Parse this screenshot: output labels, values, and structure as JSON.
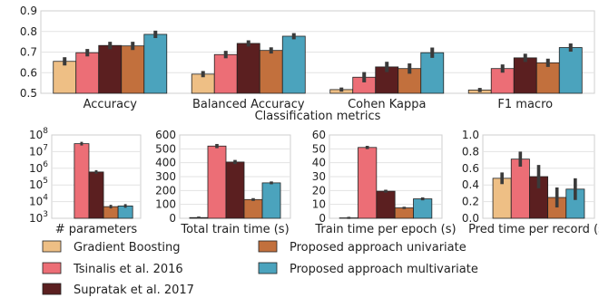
{
  "chart_data": [
    {
      "type": "bar",
      "title": "",
      "xlabel": "Classification metrics",
      "ylabel": "",
      "ylim": [
        0.5,
        0.9
      ],
      "yticks": [
        0.5,
        0.6,
        0.7,
        0.8,
        0.9
      ],
      "ytick_labels": [
        "0.5",
        "0.6",
        "0.7",
        "0.8",
        "0.9"
      ],
      "grid": true,
      "categories": [
        "Accuracy",
        "Balanced Accuracy",
        "Cohen Kappa",
        "F1 macro"
      ],
      "series": [
        {
          "name": "Gradient Boosting",
          "values": [
            0.655,
            0.593,
            0.518,
            0.516
          ],
          "err": [
            0.02,
            0.015,
            0.01,
            0.01
          ]
        },
        {
          "name": "Tsinalis et al. 2016",
          "values": [
            0.697,
            0.688,
            0.578,
            0.62
          ],
          "err": [
            0.018,
            0.018,
            0.025,
            0.02
          ]
        },
        {
          "name": "Supratak et al. 2017",
          "values": [
            0.732,
            0.742,
            0.628,
            0.672
          ],
          "err": [
            0.018,
            0.015,
            0.025,
            0.02
          ]
        },
        {
          "name": "Proposed approach univariate",
          "values": [
            0.73,
            0.708,
            0.62,
            0.648
          ],
          "err": [
            0.02,
            0.015,
            0.025,
            0.02
          ]
        },
        {
          "name": "Proposed approach multivariate",
          "values": [
            0.786,
            0.777,
            0.697,
            0.722
          ],
          "err": [
            0.018,
            0.015,
            0.025,
            0.02
          ]
        }
      ]
    },
    {
      "type": "bar",
      "title": "",
      "xlabel": "# parameters",
      "ylabel": "",
      "yscale": "log",
      "ylim": [
        1000,
        100000000
      ],
      "yticks": [
        1000,
        10000,
        100000,
        1000000,
        10000000,
        100000000
      ],
      "ytick_labels": [
        [
          "10",
          "3"
        ],
        [
          "10",
          "4"
        ],
        [
          "10",
          "5"
        ],
        [
          "10",
          "6"
        ],
        [
          "10",
          "7"
        ],
        [
          "10",
          "8"
        ]
      ],
      "grid": true,
      "categories": [
        ""
      ],
      "series": [
        {
          "name": "Gradient Boosting",
          "values": [
            null
          ],
          "err": [
            0
          ]
        },
        {
          "name": "Tsinalis et al. 2016",
          "values": [
            30000000
          ],
          "err": [
            0
          ]
        },
        {
          "name": "Supratak et al. 2017",
          "values": [
            600000
          ],
          "err": [
            0
          ]
        },
        {
          "name": "Proposed approach univariate",
          "values": [
            5000
          ],
          "err": [
            0
          ]
        },
        {
          "name": "Proposed approach multivariate",
          "values": [
            5500
          ],
          "err": [
            0
          ]
        }
      ]
    },
    {
      "type": "bar",
      "title": "",
      "xlabel": "Total train time (s)",
      "ylabel": "",
      "ylim": [
        0,
        600
      ],
      "yticks": [
        0,
        100,
        200,
        300,
        400,
        500,
        600
      ],
      "ytick_labels": [
        "0",
        "100",
        "200",
        "300",
        "400",
        "500",
        "600"
      ],
      "grid": true,
      "categories": [
        ""
      ],
      "series": [
        {
          "name": "Gradient Boosting",
          "values": [
            5
          ],
          "err": [
            1
          ]
        },
        {
          "name": "Tsinalis et al. 2016",
          "values": [
            520
          ],
          "err": [
            15
          ]
        },
        {
          "name": "Supratak et al. 2017",
          "values": [
            405
          ],
          "err": [
            15
          ]
        },
        {
          "name": "Proposed approach univariate",
          "values": [
            135
          ],
          "err": [
            10
          ]
        },
        {
          "name": "Proposed approach multivariate",
          "values": [
            255
          ],
          "err": [
            10
          ]
        }
      ]
    },
    {
      "type": "bar",
      "title": "",
      "xlabel": "Train time per epoch (s)",
      "ylabel": "",
      "ylim": [
        0,
        60
      ],
      "yticks": [
        0,
        10,
        20,
        30,
        40,
        50,
        60
      ],
      "ytick_labels": [
        "0",
        "10",
        "20",
        "30",
        "40",
        "50",
        "60"
      ],
      "grid": true,
      "categories": [
        ""
      ],
      "series": [
        {
          "name": "Gradient Boosting",
          "values": [
            0.3
          ],
          "err": [
            0.1
          ]
        },
        {
          "name": "Tsinalis et al. 2016",
          "values": [
            51
          ],
          "err": [
            0.5
          ]
        },
        {
          "name": "Supratak et al. 2017",
          "values": [
            19.5
          ],
          "err": [
            0.4
          ]
        },
        {
          "name": "Proposed approach univariate",
          "values": [
            7.5
          ],
          "err": [
            0.8
          ]
        },
        {
          "name": "Proposed approach multivariate",
          "values": [
            14
          ],
          "err": [
            0.4
          ]
        }
      ]
    },
    {
      "type": "bar",
      "title": "",
      "xlabel": "Pred time per record (s)",
      "ylabel": "",
      "ylim": [
        0,
        1.0
      ],
      "yticks": [
        0.0,
        0.2,
        0.4,
        0.6,
        0.8,
        1.0
      ],
      "ytick_labels": [
        "0.0",
        "0.2",
        "0.4",
        "0.6",
        "0.8",
        "1.0"
      ],
      "grid": true,
      "categories": [
        ""
      ],
      "series": [
        {
          "name": "Gradient Boosting",
          "values": [
            0.48
          ],
          "err": [
            0.07
          ]
        },
        {
          "name": "Tsinalis et al. 2016",
          "values": [
            0.71
          ],
          "err": [
            0.09
          ]
        },
        {
          "name": "Supratak et al. 2017",
          "values": [
            0.5
          ],
          "err": [
            0.14
          ]
        },
        {
          "name": "Proposed approach univariate",
          "values": [
            0.25
          ],
          "err": [
            0.12
          ]
        },
        {
          "name": "Proposed approach multivariate",
          "values": [
            0.35
          ],
          "err": [
            0.13
          ]
        }
      ]
    }
  ],
  "colors": {
    "Gradient Boosting": "#eebf85",
    "Tsinalis et al. 2016": "#ec6e76",
    "Supratak et al. 2017": "#5b1f20",
    "Proposed approach univariate": "#c2703d",
    "Proposed approach multivariate": "#4ba3bd"
  },
  "legend": {
    "placement": "bottom",
    "items": [
      "Gradient Boosting",
      "Tsinalis et al. 2016",
      "Supratak et al. 2017",
      "Proposed approach univariate",
      "Proposed approach multivariate"
    ]
  }
}
